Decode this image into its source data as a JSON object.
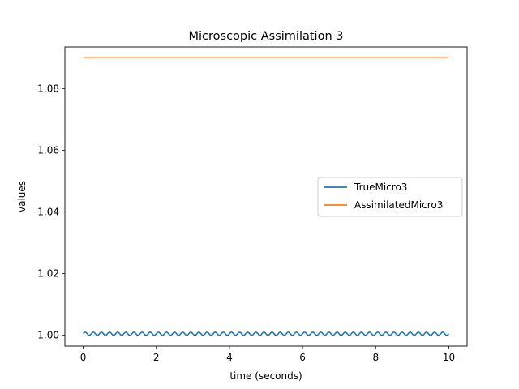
{
  "chart_data": {
    "type": "line",
    "title": "Microscopic Assimilation 3",
    "xlabel": "time (seconds)",
    "ylabel": "values",
    "xlim": [
      -0.5,
      10.5
    ],
    "ylim": [
      0.9965,
      1.0935
    ],
    "x_ticks": [
      0,
      2,
      4,
      6,
      8,
      10
    ],
    "x_tick_labels": [
      "0",
      "2",
      "4",
      "6",
      "8",
      "10"
    ],
    "y_ticks": [
      1.0,
      1.02,
      1.04,
      1.06,
      1.08
    ],
    "y_tick_labels": [
      "1.00",
      "1.02",
      "1.04",
      "1.06",
      "1.08"
    ],
    "grid": false,
    "legend_position": "center-right",
    "series": [
      {
        "name": "TrueMicro3",
        "color": "#1f77b4",
        "pattern": "sinusoid",
        "x_start": 0,
        "x_end": 10,
        "center": 1.0005,
        "amplitude": 0.0005,
        "cycles": 45
      },
      {
        "name": "AssimilatedMicro3",
        "color": "#ff7f0e",
        "x": [
          0,
          10
        ],
        "values": [
          1.09,
          1.09
        ]
      }
    ]
  }
}
